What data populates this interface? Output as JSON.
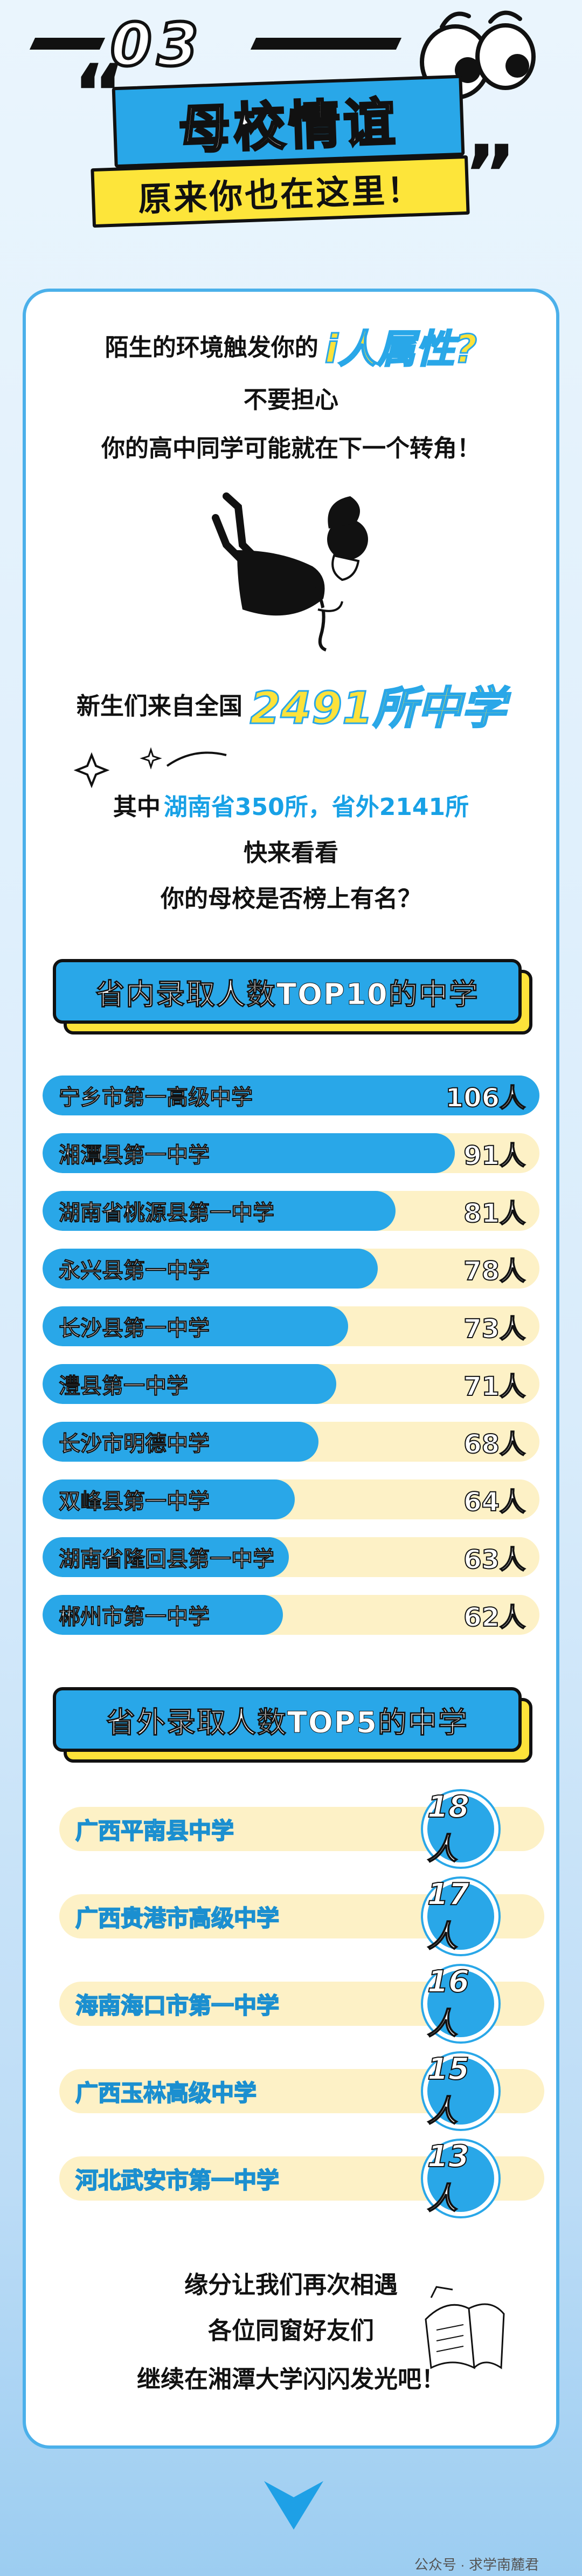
{
  "header": {
    "section_number": "03",
    "title": "母校情谊",
    "subtitle": "原来你也在这里！"
  },
  "intro": {
    "line1_prefix": "陌生的环境触发你的",
    "line1_highlight": "i人属性?",
    "line2": "不要担心",
    "line3": "你的高中同学可能就在下一个转角！"
  },
  "stats": {
    "line1_prefix": "新生们来自全国",
    "line1_highlight": "2491所中学",
    "line2_prefix": "其中",
    "line2_highlight": "湖南省350所，省外2141所",
    "line3": "快来看看",
    "line4": "你的母校是否榜上有名？"
  },
  "top10": {
    "title": "省内录取人数TOP10的中学",
    "items": [
      {
        "name": "宁乡市第一高级中学",
        "count": "106人",
        "value": 106
      },
      {
        "name": "湘潭县第一中学",
        "count": "91人",
        "value": 91
      },
      {
        "name": "湖南省桃源县第一中学",
        "count": "81人",
        "value": 81
      },
      {
        "name": "永兴县第一中学",
        "count": "78人",
        "value": 78
      },
      {
        "name": "长沙县第一中学",
        "count": "73人",
        "value": 73
      },
      {
        "name": "澧县第一中学",
        "count": "71人",
        "value": 71
      },
      {
        "name": "长沙市明德中学",
        "count": "68人",
        "value": 68
      },
      {
        "name": "双峰县第一中学",
        "count": "64人",
        "value": 64
      },
      {
        "name": "湖南省隆回县第一中学",
        "count": "63人",
        "value": 63
      },
      {
        "name": "郴州市第一中学",
        "count": "62人",
        "value": 62
      }
    ]
  },
  "top5": {
    "title": "省外录取人数TOP5的中学",
    "items": [
      {
        "name": "广西平南县中学",
        "count": "18人"
      },
      {
        "name": "广西贵港市高级中学",
        "count": "17人"
      },
      {
        "name": "海南海口市第一中学",
        "count": "16人"
      },
      {
        "name": "广西玉林高级中学",
        "count": "15人"
      },
      {
        "name": "河北武安市第一中学",
        "count": "13人"
      }
    ]
  },
  "closing": {
    "line1": "缘分让我们再次相遇",
    "line2": "各位同窗好友们",
    "line3": "继续在湘潭大学闪闪发光吧！"
  },
  "footer": {
    "watermark": "公众号 · 求学南麓君"
  },
  "colors": {
    "accent_blue": "#29a7e8",
    "accent_yellow": "#fde23a",
    "bar_track": "#fdf1c6"
  }
}
